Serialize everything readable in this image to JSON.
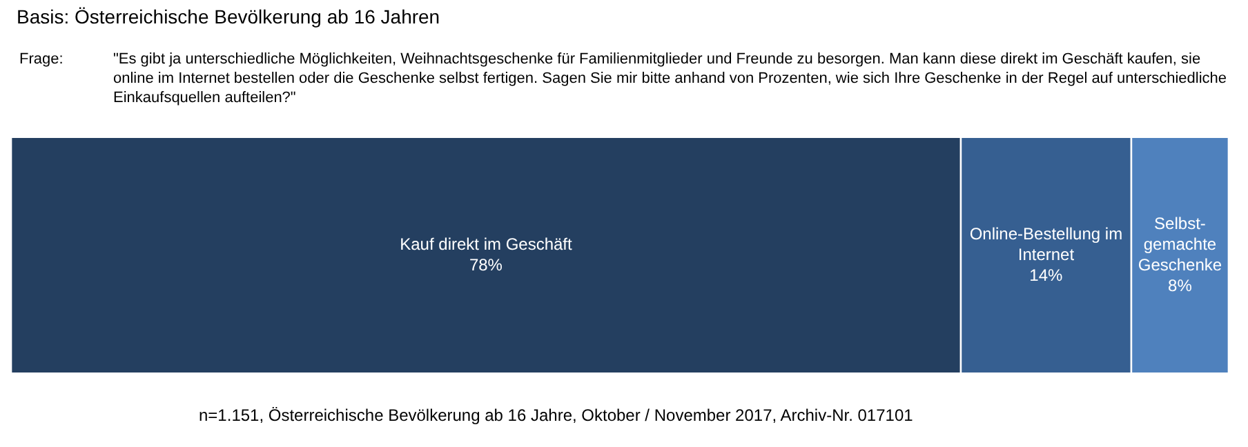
{
  "chart_data": {
    "type": "bar",
    "title": "Basis: Österreichische Bevölkerung ab 16 Jahren",
    "subtitle": "Frage: \"Es gibt ja unterschiedliche Möglichkeiten, Weihnachtsgeschenke für Familienmitglieder und Freunde zu besorgen. Man kann diese direkt im Geschäft kaufen, sie online im Internet bestellen oder die Geschenke selbst fertigen. Sagen Sie mir bitte anhand von Prozenten, wie sich Ihre Geschenke in der Regel auf unterschiedliche Einkaufsquellen aufteilen?\"",
    "annotations": [
      "n=1.151, Österreichische Bevölkerung ab 16 Jahre, Oktober / November 2017, Archiv-Nr. 017101"
    ],
    "orientation": "horizontal",
    "stacked": true,
    "categories": [
      null
    ],
    "tick_labels": false,
    "grid": false,
    "legend": false,
    "series": [
      {
        "name": "Kauf direkt im Geschäft",
        "color": "#243f60",
        "values": [
          78
        ],
        "value_labels": [
          "78%"
        ]
      },
      {
        "name": "Online-Bestellung im Internet",
        "color": "#365f91",
        "values": [
          14
        ],
        "value_labels": [
          "14%"
        ]
      },
      {
        "name": "Selbst-gemachte Geschenke",
        "color": "#4f81bd",
        "values": [
          8
        ],
        "value_labels": [
          "8%"
        ]
      }
    ]
  }
}
